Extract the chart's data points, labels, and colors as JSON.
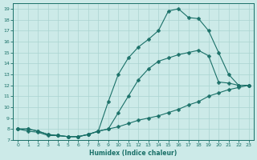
{
  "xlabel": "Humidex (Indice chaleur)",
  "bg_color": "#cceae8",
  "grid_color": "#aad4d0",
  "line_color": "#1a7068",
  "xlim": [
    -0.5,
    23.5
  ],
  "ylim": [
    7,
    19.5
  ],
  "xticks": [
    0,
    1,
    2,
    3,
    4,
    5,
    6,
    7,
    8,
    9,
    10,
    11,
    12,
    13,
    14,
    15,
    16,
    17,
    18,
    19,
    20,
    21,
    22,
    23
  ],
  "yticks": [
    7,
    8,
    9,
    10,
    11,
    12,
    13,
    14,
    15,
    16,
    17,
    18,
    19
  ],
  "line1_x": [
    0,
    1,
    2,
    3,
    4,
    5,
    6,
    7,
    8,
    9,
    10,
    11,
    12,
    13,
    14,
    15,
    16,
    17,
    18,
    19,
    20,
    21,
    22,
    23
  ],
  "line1_y": [
    8.0,
    8.0,
    7.8,
    7.5,
    7.4,
    7.3,
    7.3,
    7.5,
    7.8,
    8.0,
    8.2,
    8.5,
    8.8,
    9.0,
    9.2,
    9.5,
    9.8,
    10.2,
    10.5,
    11.0,
    11.3,
    11.6,
    11.8,
    12.0
  ],
  "line2_x": [
    0,
    1,
    2,
    3,
    4,
    5,
    6,
    7,
    8,
    9,
    10,
    11,
    12,
    13,
    14,
    15,
    16,
    17,
    18,
    19,
    20,
    21,
    22,
    23
  ],
  "line2_y": [
    8.0,
    8.0,
    7.8,
    7.5,
    7.4,
    7.3,
    7.3,
    7.5,
    7.8,
    8.0,
    9.5,
    11.0,
    12.5,
    13.5,
    14.2,
    14.5,
    14.8,
    15.0,
    15.2,
    14.7,
    12.3,
    12.2,
    12.0,
    12.0
  ],
  "line3_x": [
    0,
    1,
    2,
    3,
    4,
    5,
    6,
    7,
    8,
    9,
    10,
    11,
    12,
    13,
    14,
    15,
    16,
    17,
    18,
    19,
    20,
    21,
    22,
    23
  ],
  "line3_y": [
    8.0,
    7.8,
    7.7,
    7.4,
    7.4,
    7.3,
    7.3,
    7.5,
    7.8,
    10.5,
    13.0,
    14.5,
    15.5,
    16.2,
    17.0,
    18.8,
    19.0,
    18.2,
    18.1,
    17.0,
    15.0,
    13.0,
    12.0,
    12.0
  ]
}
